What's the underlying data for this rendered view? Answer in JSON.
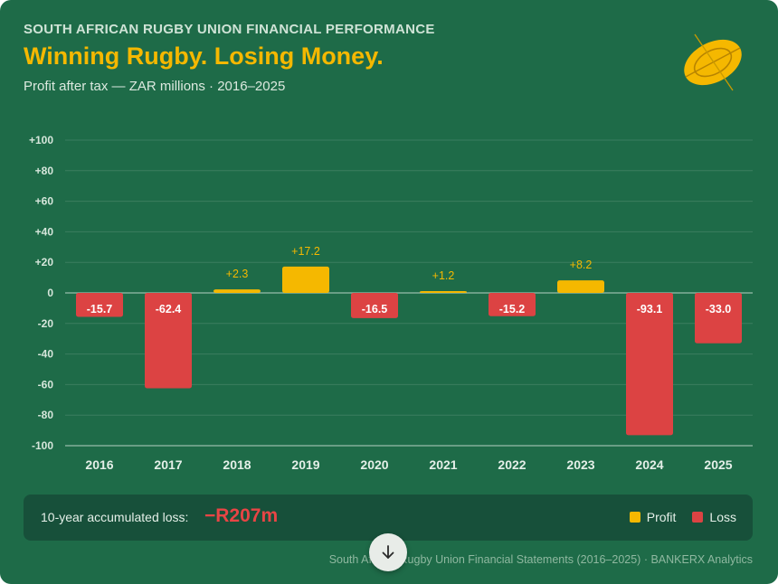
{
  "header": {
    "kicker": "SOUTH AFRICAN RUGBY UNION FINANCIAL PERFORMANCE",
    "title": "Winning Rugby. Losing Money.",
    "subtitle": "Profit after tax — ZAR millions · 2016–2025"
  },
  "logo": {
    "icon": "rugby-ball-icon",
    "color": "#f5b800"
  },
  "summary": {
    "label": "10-year accumulated loss:",
    "value": "−R207m"
  },
  "legend": {
    "profit_label": "Profit",
    "loss_label": "Loss",
    "profit_color": "#f5b800",
    "loss_color": "#dc4343"
  },
  "source": "South African Rugby Union Financial Statements (2016–2025) · BANKERX Analytics",
  "scroll_button": {
    "icon": "arrow-down-icon"
  },
  "chart_data": {
    "type": "bar",
    "categories": [
      "2016",
      "2017",
      "2018",
      "2019",
      "2020",
      "2021",
      "2022",
      "2023",
      "2024",
      "2025"
    ],
    "values": [
      -15.7,
      -62.4,
      2.3,
      17.2,
      -16.5,
      1.2,
      -15.2,
      8.2,
      -93.1,
      -33.0
    ],
    "data_labels": [
      "-15.7",
      "-62.4",
      "+2.3",
      "+17.2",
      "-16.5",
      "+1.2",
      "-15.2",
      "+8.2",
      "-93.1",
      "-33.0"
    ],
    "ylim": [
      -100,
      100
    ],
    "yticks": [
      100,
      80,
      60,
      40,
      20,
      0,
      -20,
      -40,
      -60,
      -80,
      -100
    ],
    "ytick_labels": [
      "+100",
      "+80",
      "+60",
      "+40",
      "+20",
      "0",
      "-20",
      "-40",
      "-60",
      "-80",
      "-100"
    ],
    "grid": true,
    "legend_position": "bottom-right"
  }
}
